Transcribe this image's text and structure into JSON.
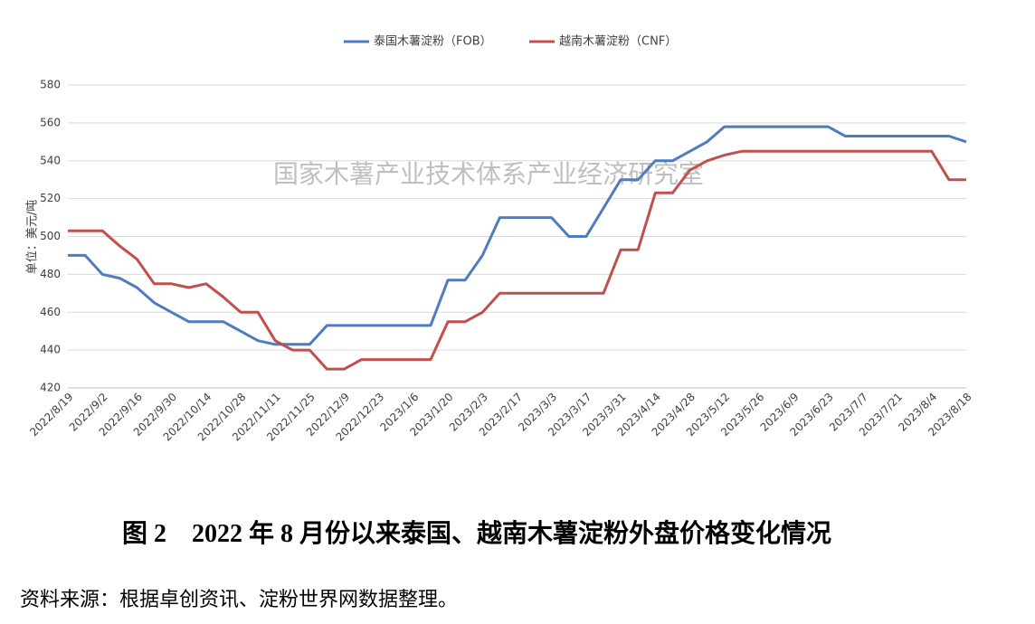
{
  "chart_data": {
    "type": "line",
    "categories": [
      "2022/8/19",
      null,
      "2022/9/2",
      null,
      "2022/9/16",
      null,
      "2022/9/30",
      null,
      "2022/10/14",
      null,
      "2022/10/28",
      null,
      "2022/11/11",
      null,
      "2022/11/25",
      null,
      "2022/12/9",
      null,
      "2022/12/23",
      null,
      "2023/1/6",
      null,
      "2023/1/20",
      null,
      "2023/2/3",
      null,
      "2023/2/17",
      null,
      "2023/3/3",
      null,
      "2023/3/17",
      null,
      "2023/3/31",
      null,
      "2023/4/14",
      null,
      "2023/4/28",
      null,
      "2023/5/12",
      null,
      "2023/5/26",
      null,
      "2023/6/9",
      null,
      "2023/6/23",
      null,
      "2023/7/7",
      null,
      "2023/7/21",
      null,
      "2023/8/4",
      null,
      "2023/8/18"
    ],
    "series": [
      {
        "name": "泰国木薯淀粉（FOB）",
        "color": "#4e7cbf",
        "values": [
          490,
          490,
          480,
          478,
          473,
          465,
          460,
          455,
          455,
          455,
          450,
          445,
          443,
          443,
          443,
          453,
          453,
          453,
          453,
          453,
          453,
          453,
          477,
          477,
          490,
          510,
          510,
          510,
          510,
          500,
          500,
          515,
          530,
          530,
          540,
          540,
          545,
          550,
          558,
          558,
          558,
          558,
          558,
          558,
          558,
          553,
          553,
          553,
          553,
          553,
          553,
          553,
          550
        ]
      },
      {
        "name": "越南木薯淀粉（CNF）",
        "color": "#c0504d",
        "values": [
          503,
          503,
          503,
          495,
          488,
          475,
          475,
          473,
          475,
          468,
          460,
          460,
          445,
          440,
          440,
          430,
          430,
          435,
          435,
          435,
          435,
          435,
          455,
          455,
          460,
          470,
          470,
          470,
          470,
          470,
          470,
          470,
          493,
          493,
          523,
          523,
          535,
          540,
          543,
          545,
          545,
          545,
          545,
          545,
          545,
          545,
          545,
          545,
          545,
          545,
          545,
          530,
          530
        ]
      }
    ],
    "ylim": [
      420,
      580
    ],
    "yticks": [
      420,
      440,
      460,
      480,
      500,
      520,
      540,
      560,
      580
    ],
    "ylabel": "单位：美元/吨",
    "grid": true,
    "legend": "top",
    "watermark": "国家木薯产业技术体系产业经济研究室"
  },
  "caption": "图 2　2022 年 8 月份以来泰国、越南木薯淀粉外盘价格变化情况",
  "source": "资料来源：根据卓创资讯、淀粉世界网数据整理。"
}
